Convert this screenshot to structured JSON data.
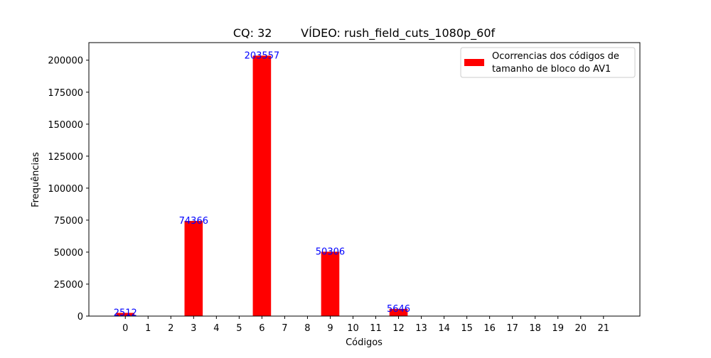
{
  "chart_data": {
    "type": "bar",
    "title": "CQ: 32        VÍDEO: rush_field_cuts_1080p_60f",
    "xlabel": "Códigos",
    "ylabel": "Frequências",
    "categories": [
      "0",
      "1",
      "2",
      "3",
      "4",
      "5",
      "6",
      "7",
      "8",
      "9",
      "10",
      "11",
      "12",
      "13",
      "14",
      "15",
      "16",
      "17",
      "18",
      "19",
      "20",
      "21"
    ],
    "series": [
      {
        "name": "Ocorrencias dos códigos de tamanho de bloco do AV1",
        "legend_lines": [
          "Ocorrencias dos códigos de",
          "tamanho de bloco do AV1"
        ],
        "color": "#ff0000",
        "values": [
          2512,
          0,
          0,
          74366,
          0,
          0,
          203557,
          0,
          0,
          50306,
          0,
          0,
          5646,
          0,
          0,
          0,
          0,
          0,
          0,
          0,
          0,
          0
        ]
      }
    ],
    "data_labels": [
      {
        "category": "0",
        "text": "2512"
      },
      {
        "category": "3",
        "text": "74366"
      },
      {
        "category": "6",
        "text": "203557"
      },
      {
        "category": "9",
        "text": "50306"
      },
      {
        "category": "12",
        "text": "5646"
      }
    ],
    "label_color": "#0000ff",
    "yticks": [
      0,
      25000,
      50000,
      75000,
      100000,
      125000,
      150000,
      175000,
      200000
    ],
    "ylim": [
      0,
      213735
    ],
    "xlim": [
      -1.6,
      22.6
    ],
    "grid": false,
    "legend_position": "upper right"
  }
}
